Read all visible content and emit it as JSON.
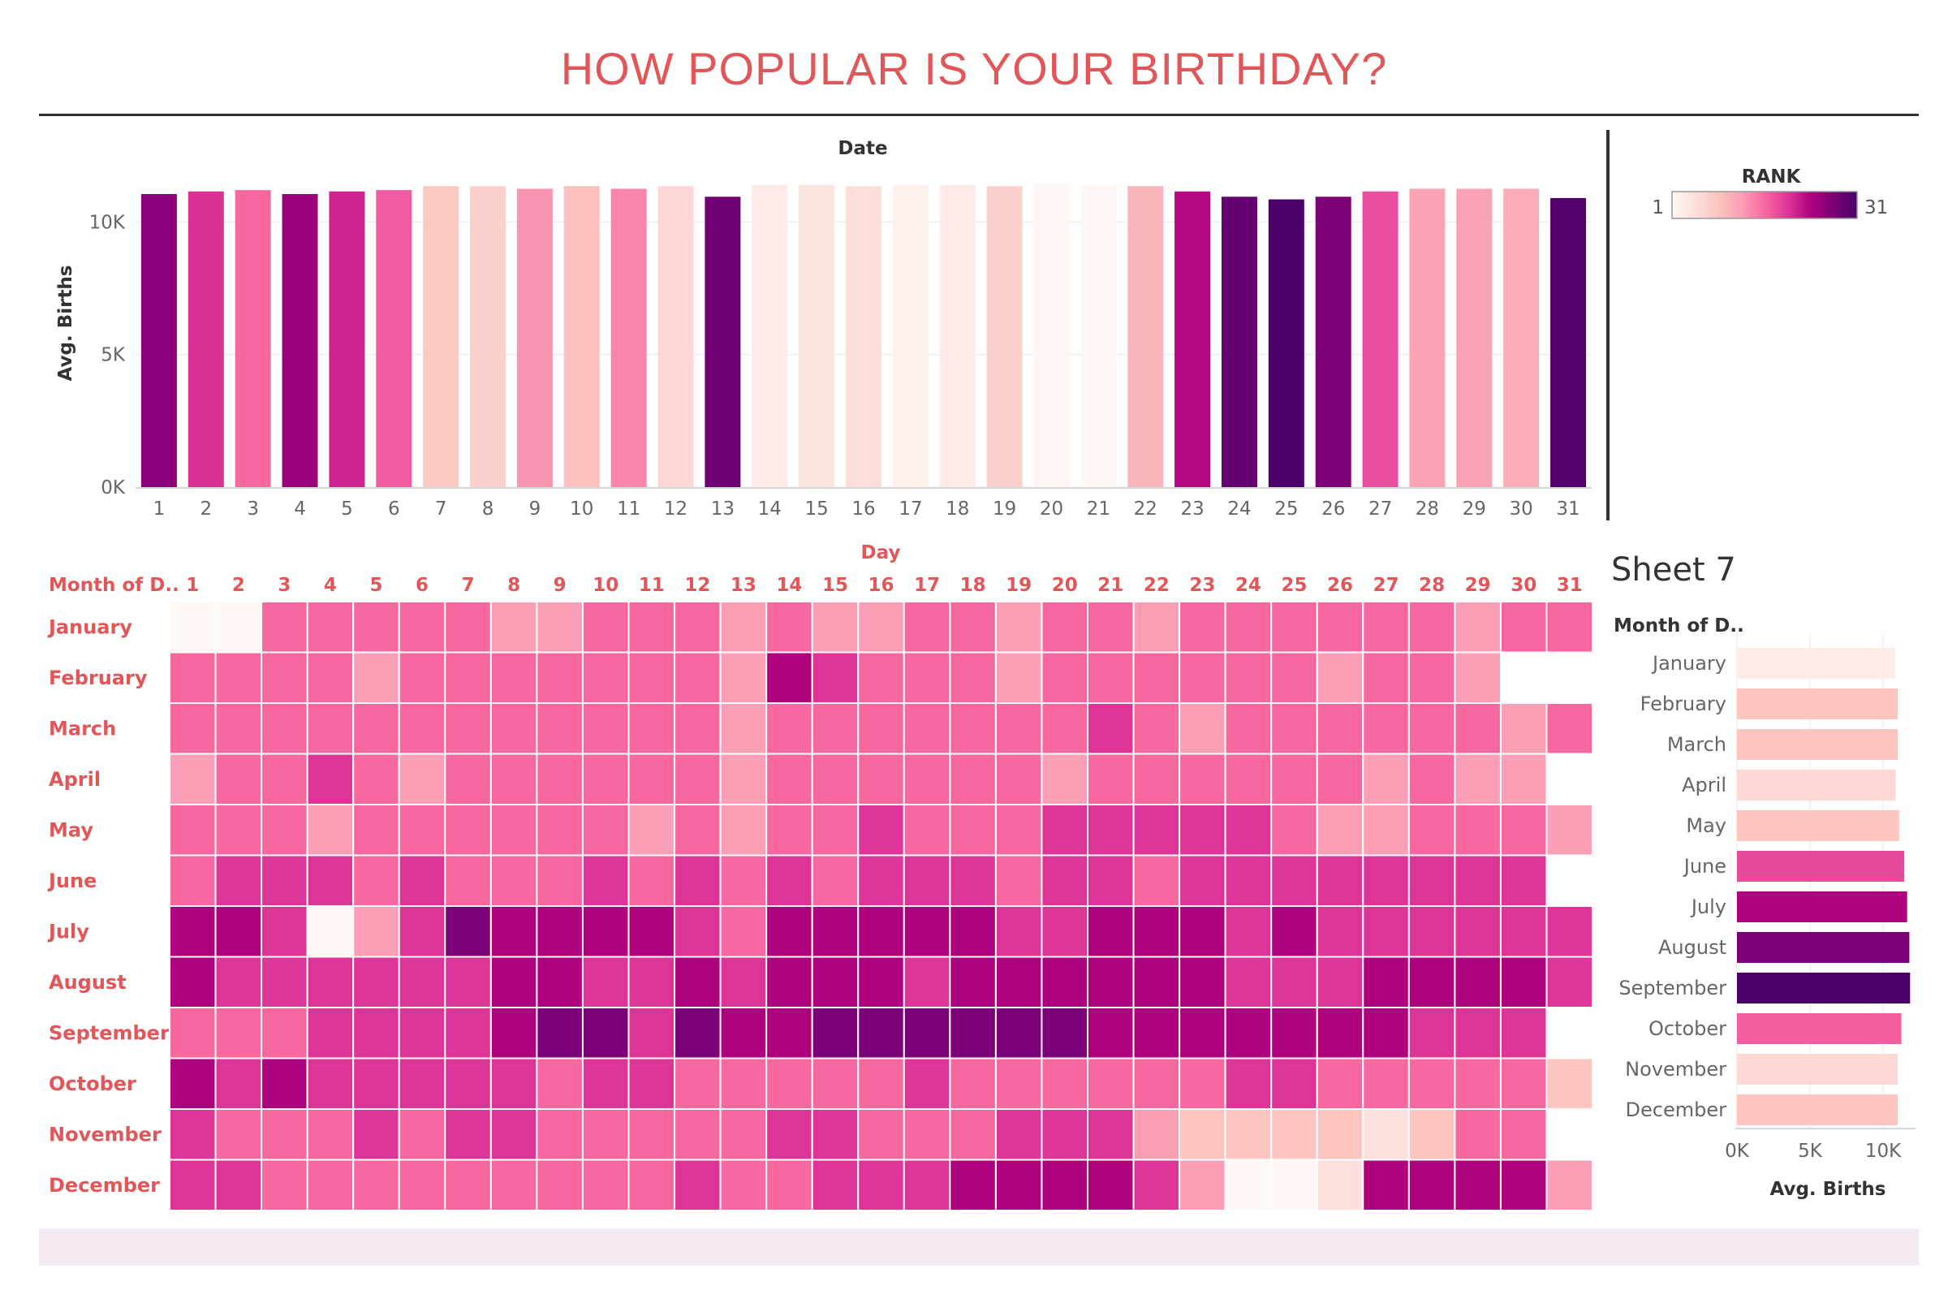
{
  "dashboard": {
    "title": "HOW POPULAR IS YOUR BIRTHDAY?"
  },
  "colors": {
    "title": "#e15759",
    "header_text": "#e15759",
    "ramp": [
      "#fff7f3",
      "#fde0dd",
      "#fcc5c0",
      "#fa9fb5",
      "#f768a1",
      "#dd3497",
      "#ae017e",
      "#7a0177",
      "#49006a"
    ]
  },
  "legend": {
    "title": "RANK",
    "min_label": "1",
    "max_label": "31"
  },
  "chart_data": [
    {
      "id": "avg-births-by-date",
      "type": "bar",
      "title": "Date",
      "xlabel": "",
      "ylabel": "Avg. Births",
      "ylim": [
        0,
        12000
      ],
      "yticks": [
        0,
        5000,
        10000
      ],
      "ytick_labels": [
        "0K",
        "5K",
        "10K"
      ],
      "grid": true,
      "categories": [
        "1",
        "2",
        "3",
        "4",
        "5",
        "6",
        "7",
        "8",
        "9",
        "10",
        "11",
        "12",
        "13",
        "14",
        "15",
        "16",
        "17",
        "18",
        "19",
        "20",
        "21",
        "22",
        "23",
        "24",
        "25",
        "26",
        "27",
        "28",
        "29",
        "30",
        "31"
      ],
      "values": [
        11050,
        11150,
        11200,
        11050,
        11150,
        11200,
        11350,
        11350,
        11250,
        11350,
        11250,
        11350,
        10950,
        11400,
        11400,
        11350,
        11400,
        11400,
        11350,
        11450,
        11400,
        11350,
        11150,
        10950,
        10850,
        10950,
        11150,
        11250,
        11250,
        11250,
        10900
      ],
      "ranks": [
        26,
        20,
        16,
        25,
        21,
        17,
        8,
        7,
        13,
        9,
        14,
        6,
        28,
        3,
        4,
        5,
        2,
        3,
        7,
        1,
        1,
        10,
        23,
        29,
        31,
        27,
        18,
        12,
        12,
        11,
        30
      ]
    },
    {
      "id": "rank-heatmap",
      "type": "heatmap",
      "title": "Day",
      "row_header": "Month of D..",
      "rows": [
        "January",
        "February",
        "March",
        "April",
        "May",
        "June",
        "July",
        "August",
        "September",
        "October",
        "November",
        "December"
      ],
      "columns": [
        "1",
        "2",
        "3",
        "4",
        "5",
        "6",
        "7",
        "8",
        "9",
        "10",
        "11",
        "12",
        "13",
        "14",
        "15",
        "16",
        "17",
        "18",
        "19",
        "20",
        "21",
        "22",
        "23",
        "24",
        "25",
        "26",
        "27",
        "28",
        "29",
        "30",
        "31"
      ],
      "scale_max": 8,
      "values": [
        [
          0,
          0,
          4,
          4,
          4,
          4,
          4,
          3,
          3,
          4,
          4,
          4,
          3,
          4,
          3,
          3,
          4,
          4,
          3,
          4,
          4,
          3,
          4,
          4,
          4,
          4,
          4,
          4,
          3,
          4,
          4
        ],
        [
          4,
          4,
          4,
          4,
          3,
          4,
          4,
          4,
          4,
          4,
          4,
          4,
          3,
          6,
          5,
          4,
          4,
          4,
          3,
          4,
          4,
          4,
          4,
          4,
          4,
          3,
          4,
          4,
          3,
          null,
          null
        ],
        [
          4,
          4,
          4,
          4,
          4,
          4,
          4,
          4,
          4,
          4,
          4,
          4,
          3,
          4,
          4,
          4,
          4,
          4,
          4,
          4,
          5,
          4,
          3,
          4,
          4,
          4,
          4,
          4,
          4,
          3,
          4
        ],
        [
          3,
          4,
          4,
          5,
          4,
          3,
          4,
          4,
          4,
          4,
          4,
          4,
          3,
          4,
          4,
          4,
          4,
          4,
          4,
          3,
          4,
          4,
          4,
          4,
          4,
          4,
          3,
          4,
          3,
          3,
          null
        ],
        [
          4,
          4,
          4,
          3,
          4,
          4,
          4,
          4,
          4,
          4,
          3,
          4,
          3,
          4,
          4,
          5,
          4,
          4,
          4,
          5,
          5,
          5,
          5,
          5,
          4,
          3,
          3,
          4,
          4,
          4,
          3
        ],
        [
          4,
          5,
          5,
          5,
          4,
          5,
          4,
          4,
          4,
          5,
          4,
          5,
          4,
          5,
          4,
          5,
          5,
          5,
          4,
          5,
          5,
          4,
          5,
          5,
          5,
          5,
          5,
          5,
          5,
          5,
          null
        ],
        [
          6,
          6,
          5,
          0,
          3,
          5,
          7,
          6,
          6,
          6,
          6,
          5,
          4,
          6,
          6,
          6,
          6,
          6,
          5,
          5,
          6,
          6,
          6,
          5,
          6,
          5,
          5,
          5,
          5,
          5,
          5
        ],
        [
          6,
          5,
          5,
          5,
          5,
          5,
          5,
          6,
          6,
          5,
          5,
          6,
          5,
          6,
          6,
          6,
          5,
          6,
          6,
          6,
          6,
          6,
          6,
          5,
          5,
          5,
          6,
          6,
          6,
          6,
          5
        ],
        [
          4,
          4,
          4,
          5,
          5,
          5,
          5,
          6,
          7,
          7,
          5,
          7,
          6,
          6,
          7,
          7,
          7,
          7,
          7,
          7,
          6,
          6,
          6,
          6,
          6,
          6,
          6,
          5,
          5,
          5,
          null
        ],
        [
          6,
          5,
          6,
          5,
          5,
          5,
          5,
          5,
          4,
          5,
          5,
          4,
          4,
          4,
          4,
          4,
          5,
          4,
          4,
          4,
          4,
          4,
          4,
          5,
          5,
          4,
          4,
          4,
          4,
          4,
          2
        ],
        [
          5,
          4,
          4,
          4,
          5,
          4,
          5,
          5,
          4,
          4,
          4,
          4,
          4,
          5,
          5,
          4,
          4,
          4,
          5,
          5,
          5,
          3,
          2,
          2,
          2,
          2,
          1,
          2,
          4,
          4,
          null
        ],
        [
          5,
          5,
          4,
          4,
          4,
          4,
          4,
          4,
          4,
          4,
          4,
          5,
          4,
          4,
          5,
          5,
          5,
          6,
          6,
          6,
          6,
          5,
          3,
          0,
          0,
          1,
          6,
          6,
          6,
          6,
          3
        ]
      ]
    },
    {
      "id": "sheet-7",
      "type": "bar",
      "orientation": "horizontal",
      "title": "Sheet 7",
      "row_header": "Month of D..",
      "xlabel": "Avg. Births",
      "xlim": [
        0,
        12000
      ],
      "xticks": [
        0,
        5000,
        10000
      ],
      "xtick_labels": [
        "0K",
        "5K",
        "10K"
      ],
      "categories": [
        "January",
        "February",
        "March",
        "April",
        "May",
        "June",
        "July",
        "August",
        "September",
        "October",
        "November",
        "December"
      ],
      "values": [
        10800,
        11000,
        11000,
        10850,
        11100,
        11450,
        11650,
        11800,
        11850,
        11250,
        11000,
        11000
      ],
      "shades": [
        0.5,
        2,
        2,
        1.3,
        2,
        4.6,
        6,
        7,
        8,
        4.2,
        1.3,
        2
      ]
    }
  ]
}
